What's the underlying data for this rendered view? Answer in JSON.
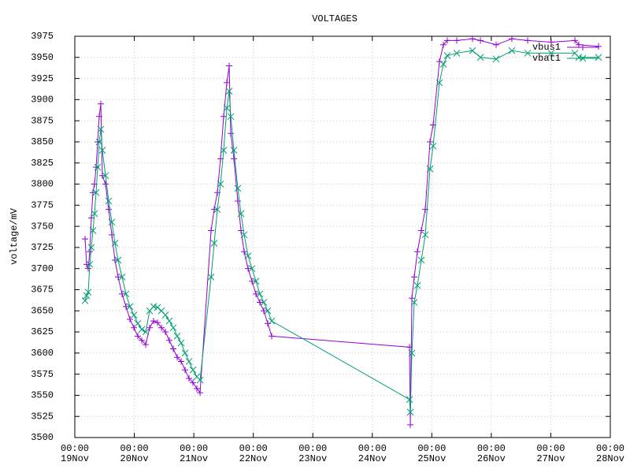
{
  "chart_data": {
    "type": "line",
    "title": "VOLTAGES",
    "y_label": "voltage/mV",
    "x": [
      "19Nov 04:08",
      "19Nov 04:46",
      "19Nov 05:24",
      "19Nov 06:02",
      "19Nov 06:40",
      "19Nov 07:18",
      "19Nov 07:56",
      "19Nov 08:35",
      "19Nov 09:13",
      "19Nov 09:51",
      "19Nov 10:29",
      "19Nov 11:07",
      "19Nov 12:23",
      "19Nov 13:40",
      "19Nov 14:56",
      "19Nov 16:12",
      "19Nov 17:28",
      "19Nov 19:04",
      "19Nov 20:39",
      "19Nov 22:14",
      "19Nov 23:50",
      "20Nov 01:25",
      "20Nov 03:00",
      "20Nov 04:36",
      "20Nov 06:11",
      "20Nov 07:46",
      "20Nov 09:21",
      "20Nov 10:57",
      "20Nov 12:32",
      "20Nov 14:07",
      "20Nov 15:43",
      "20Nov 17:18",
      "20Nov 18:53",
      "20Nov 20:28",
      "20Nov 22:04",
      "20Nov 23:39",
      "21Nov 01:14",
      "21Nov 02:31",
      "21Nov 06:58",
      "21Nov 08:14",
      "21Nov 09:30",
      "21Nov 10:46",
      "21Nov 12:02",
      "21Nov 13:19",
      "21Nov 14:16",
      "21Nov 14:54",
      "21Nov 16:10",
      "21Nov 17:45",
      "21Nov 19:02",
      "21Nov 20:18",
      "21Nov 21:53",
      "21Nov 23:29",
      "22Nov 01:04",
      "22Nov 02:39",
      "22Nov 04:14",
      "22Nov 05:50",
      "22Nov 07:25",
      "24Nov 15:01",
      "24Nov 15:20",
      "24Nov 15:58",
      "24Nov 16:55",
      "24Nov 18:11",
      "24Nov 19:46",
      "24Nov 21:22",
      "24Nov 23:16",
      "25Nov 00:32",
      "25Nov 03:05",
      "25Nov 04:40",
      "25Nov 06:15",
      "25Nov 10:04",
      "25Nov 16:25",
      "25Nov 19:36",
      "26Nov 01:57",
      "26Nov 08:18",
      "26Nov 14:40",
      "27Nov 00:11",
      "27Nov 09:43",
      "27Nov 11:18",
      "27Nov 19:15"
    ],
    "series": [
      {
        "name": "vbus1",
        "color": "#9400d3",
        "marker": "plus",
        "values": [
          3735,
          3705,
          3700,
          3720,
          3760,
          3790,
          3800,
          3820,
          3850,
          3880,
          3895,
          3810,
          3800,
          3770,
          3740,
          3710,
          3690,
          3670,
          3655,
          3640,
          3630,
          3620,
          3615,
          3610,
          3630,
          3638,
          3636,
          3630,
          3625,
          3615,
          3605,
          3595,
          3590,
          3580,
          3570,
          3565,
          3558,
          3553,
          3745,
          3770,
          3790,
          3830,
          3880,
          3920,
          3940,
          3860,
          3830,
          3780,
          3745,
          3720,
          3700,
          3685,
          3670,
          3660,
          3650,
          3635,
          3620,
          3607,
          3515,
          3665,
          3690,
          3720,
          3745,
          3770,
          3850,
          3870,
          3945,
          3965,
          3970,
          3970,
          3972,
          3970,
          3965,
          3972,
          3970,
          3968,
          3970,
          3965,
          3963
        ]
      },
      {
        "name": "vbat1",
        "color": "#009e73",
        "marker": "cross",
        "values": [
          3662,
          3668,
          3672,
          3705,
          3725,
          3745,
          3765,
          3790,
          3820,
          3850,
          3865,
          3840,
          3810,
          3780,
          3755,
          3730,
          3710,
          3690,
          3670,
          3655,
          3645,
          3635,
          3628,
          3625,
          3650,
          3655,
          3654,
          3650,
          3645,
          3638,
          3630,
          3620,
          3612,
          3600,
          3590,
          3580,
          3572,
          3568,
          3690,
          3730,
          3770,
          3800,
          3840,
          3890,
          3910,
          3880,
          3840,
          3795,
          3765,
          3740,
          3715,
          3700,
          3685,
          3670,
          3660,
          3650,
          3638,
          3545,
          3530,
          3600,
          3660,
          3680,
          3710,
          3740,
          3818,
          3845,
          3920,
          3942,
          3952,
          3955,
          3958,
          3950,
          3948,
          3958,
          3955,
          3955,
          3955,
          3950,
          3950
        ]
      }
    ],
    "xlim": [
      "19Nov 00:00",
      "28Nov 00:00"
    ],
    "xticks": [
      {
        "value": "19Nov 00:00",
        "label": "00:00 19Nov"
      },
      {
        "value": "20Nov 00:00",
        "label": "00:00 20Nov"
      },
      {
        "value": "21Nov 00:00",
        "label": "00:00 21Nov"
      },
      {
        "value": "22Nov 00:00",
        "label": "00:00 22Nov"
      },
      {
        "value": "23Nov 00:00",
        "label": "00:00 23Nov"
      },
      {
        "value": "24Nov 00:00",
        "label": "00:00 24Nov"
      },
      {
        "value": "25Nov 00:00",
        "label": "00:00 25Nov"
      },
      {
        "value": "26Nov 00:00",
        "label": "00:00 26Nov"
      },
      {
        "value": "27Nov 00:00",
        "label": "00:00 27Nov"
      },
      {
        "value": "28Nov 00:00",
        "label": "00:00 28Nov"
      }
    ],
    "ylim": [
      3500,
      3975
    ],
    "yticks": [
      3500,
      3525,
      3550,
      3575,
      3600,
      3625,
      3650,
      3675,
      3700,
      3725,
      3750,
      3775,
      3800,
      3825,
      3850,
      3875,
      3900,
      3925,
      3950,
      3975
    ],
    "grid": true,
    "legend": "top-right"
  }
}
